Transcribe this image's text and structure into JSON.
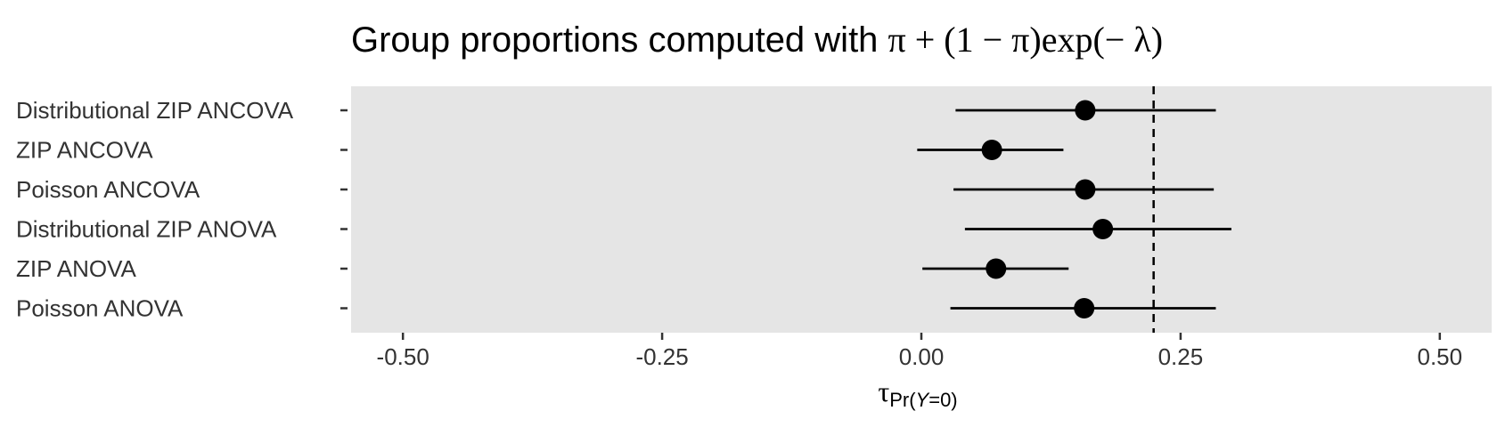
{
  "chart_data": {
    "type": "forest",
    "title": {
      "text": "Group proportions computed with ",
      "formula": "π + (1 − π)exp(− λ)"
    },
    "xlabel": {
      "symbol": "τ",
      "sub_prefix": "Pr(",
      "sub_italic": "Y",
      "sub_suffix": "=0)"
    },
    "xlim": [
      -0.55,
      0.55
    ],
    "x_ticks": [
      -0.5,
      -0.25,
      0.0,
      0.25,
      0.5
    ],
    "x_tick_labels": [
      "-0.50",
      "-0.25",
      "0.00",
      "0.25",
      "0.50"
    ],
    "reference_line": 0.224,
    "grid": false,
    "panel_color": "#e5e5e5",
    "point_color": "#000000",
    "categories": [
      "Distributional ZIP ANCOVA",
      "ZIP ANCOVA",
      "Poisson ANCOVA",
      "Distributional ZIP ANOVA",
      "ZIP ANOVA",
      "Poisson ANOVA"
    ],
    "estimates": [
      0.158,
      0.068,
      0.158,
      0.175,
      0.072,
      0.157
    ],
    "lower": [
      0.033,
      -0.004,
      0.031,
      0.042,
      0.001,
      0.028
    ],
    "upper": [
      0.284,
      0.137,
      0.282,
      0.299,
      0.142,
      0.284
    ]
  }
}
